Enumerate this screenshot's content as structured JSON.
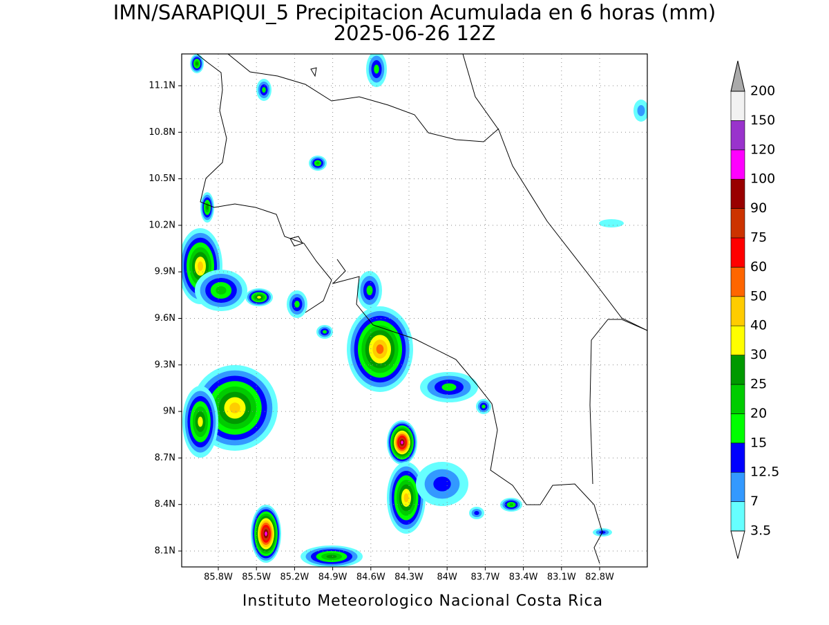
{
  "title": "IMN/SARAPIQUI_5 Precipitacion Acumulada en 6 horas (mm)",
  "subtitle": "2025-06-26 12Z",
  "footer": "Instituto Meteorologico Nacional Costa Rica",
  "map": {
    "lon_labels": [
      "85.8W",
      "85.5W",
      "85.2W",
      "84.9W",
      "84.6W",
      "84.3W",
      "84W",
      "83.7W",
      "83.4W",
      "83.1W",
      "82.8W"
    ],
    "lat_labels": [
      "11.1N",
      "10.8N",
      "10.5N",
      "10.2N",
      "9.9N",
      "9.6N",
      "9.3N",
      "9N",
      "8.7N",
      "8.4N",
      "8.1N"
    ]
  },
  "legend": {
    "levels": [
      3.5,
      7,
      12.5,
      15,
      20,
      25,
      30,
      40,
      50,
      60,
      75,
      90,
      100,
      120,
      150,
      200
    ],
    "colors": [
      "#66ffff",
      "#3399ff",
      "#0000ff",
      "#00ff00",
      "#00cc00",
      "#009900",
      "#ffff00",
      "#ffcc00",
      "#ff6600",
      "#ff0000",
      "#cc3300",
      "#990000",
      "#ff00ff",
      "#9933cc",
      "#f2f2f2"
    ],
    "under_color": "#ffffff",
    "over_color": "#aaaaaa"
  }
}
